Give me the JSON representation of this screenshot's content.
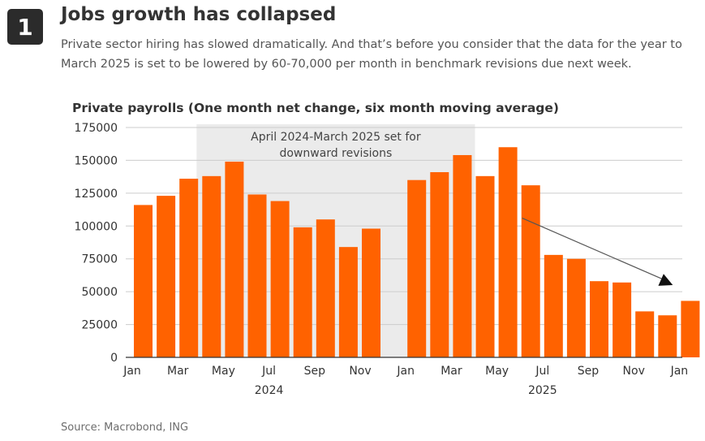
{
  "header": {
    "number": "1",
    "title": "Jobs growth has collapsed",
    "subtitle": "Private sector hiring has slowed dramatically. And that’s before you consider that the data for the year to March 2025 is set to be lowered by 60-70,000 per month in benchmark revisions due next week."
  },
  "source": "Source: Macrobond, ING",
  "colors": {
    "bar": "#ff6200",
    "shade": "#ebebeb",
    "grid": "#cccccc",
    "arrow": "#555555",
    "text": "#333333"
  },
  "chart_data": {
    "type": "bar",
    "title": "Private payrolls (One month net change, six month moving average)",
    "ylim": [
      0,
      175000
    ],
    "yticks": [
      0,
      25000,
      50000,
      75000,
      100000,
      125000,
      150000,
      175000
    ],
    "categories": [
      "Jan 2024",
      "Feb 2024",
      "Mar 2024",
      "Apr 2024",
      "May 2024",
      "Jun 2024",
      "Jul 2024",
      "Aug 2024",
      "Sep 2024",
      "Oct 2024",
      "Nov 2024",
      "Dec 2024",
      "Jan 2025",
      "Feb 2025",
      "Mar 2025",
      "Apr 2025",
      "May 2025",
      "Jun 2025",
      "Jul 2025",
      "Aug 2025",
      "Sep 2025",
      "Oct 2025",
      "Nov 2025",
      "Dec 2025",
      "Jan 2026"
    ],
    "values": [
      116000,
      123000,
      136000,
      138000,
      149000,
      124000,
      119000,
      99000,
      105000,
      84000,
      98000,
      null,
      135000,
      141000,
      154000,
      138000,
      160000,
      131000,
      78000,
      75000,
      58000,
      57000,
      35000,
      32000,
      43000
    ],
    "xticks": [
      "Jan",
      "Mar",
      "May",
      "Jul",
      "Sep",
      "Nov",
      "Jan",
      "Mar",
      "May",
      "Jul",
      "Sep",
      "Nov",
      "Jan"
    ],
    "years": [
      "2024",
      "2025"
    ],
    "annotation": {
      "text_line1": "April 2024-March 2025 set for",
      "text_line2": "downward revisions",
      "shaded_from": "Apr 2024",
      "shaded_to": "Mar 2025"
    },
    "trend_arrow": {
      "from": [
        "Jun 2025",
        106000
      ],
      "to": [
        "Dec 2025",
        55000
      ]
    },
    "grid": true
  }
}
